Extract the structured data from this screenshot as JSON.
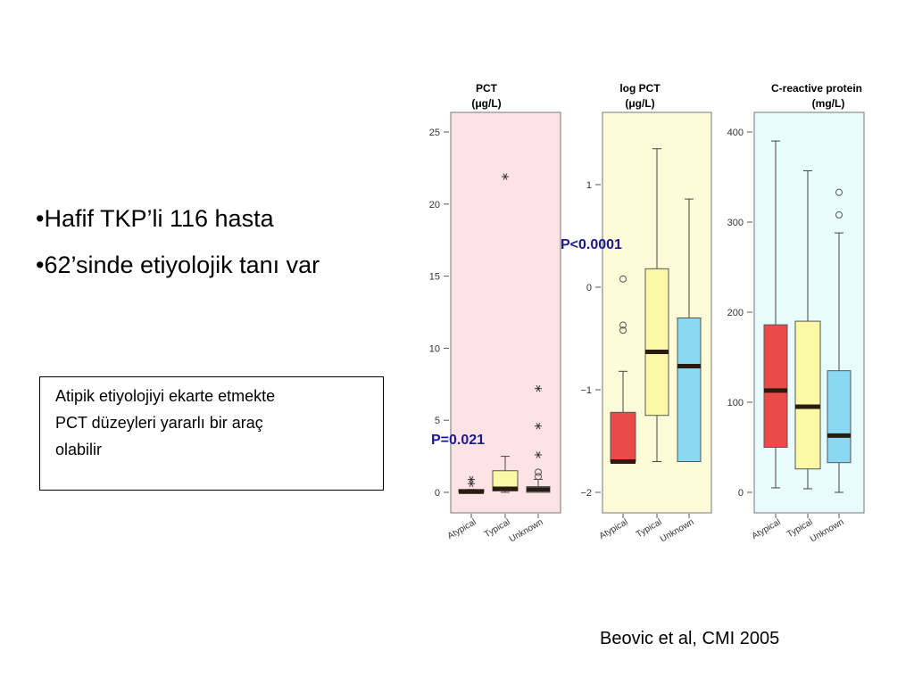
{
  "bullets": [
    "•Hafif TKP’li 116 hasta",
    "•62’sinde etiyolojik tanı var"
  ],
  "note": {
    "lines": [
      "Atipik etiyolojiyi ekarte etmekte",
      "PCT düzeyleri yararlı bir araç",
      "olabilir"
    ]
  },
  "pvalues": {
    "logpct": "P<0.0001",
    "pct": "P=0.021"
  },
  "citation": "Beovic et al, CMI 2005",
  "colors": {
    "atypical": "#e94b4b",
    "typical": "#fbf8a6",
    "unknown": "#8ad8f2",
    "median": "#2a1a10",
    "pct_bg": "#fde3e6",
    "logpct_bg": "#fefcd8",
    "crp_bg": "#e8fbfd"
  },
  "chart_data": [
    {
      "type": "box",
      "title": "PCT",
      "unit": "(μg/L)",
      "categories": [
        "Atypical",
        "Typical",
        "Unknown"
      ],
      "ylim": [
        -0.5,
        26
      ],
      "yticks": [
        0,
        5,
        10,
        15,
        20,
        25
      ],
      "ytick_labels": [
        "0",
        "5",
        "10",
        "15",
        "20",
        "25"
      ],
      "boxes": [
        {
          "name": "Atypical",
          "q1": 0.0,
          "median": 0.05,
          "q3": 0.2,
          "whisker_low": 0.0,
          "whisker_high": 0.2
        },
        {
          "name": "Typical",
          "q1": 0.1,
          "median": 0.25,
          "q3": 1.5,
          "whisker_low": 0.0,
          "whisker_high": 2.5
        },
        {
          "name": "Unknown",
          "q1": 0.0,
          "median": 0.2,
          "q3": 0.4,
          "whisker_low": 0.0,
          "whisker_high": 0.9
        }
      ],
      "outliers": [
        {
          "cat": 0,
          "value": 0.6,
          "marker": "star"
        },
        {
          "cat": 0,
          "value": 0.9,
          "marker": "star"
        },
        {
          "cat": 1,
          "value": 21.9,
          "marker": "star"
        },
        {
          "cat": 2,
          "value": 1.1,
          "marker": "circle"
        },
        {
          "cat": 2,
          "value": 1.4,
          "marker": "circle"
        },
        {
          "cat": 2,
          "value": 2.6,
          "marker": "star"
        },
        {
          "cat": 2,
          "value": 4.6,
          "marker": "star"
        },
        {
          "cat": 2,
          "value": 7.2,
          "marker": "star"
        }
      ]
    },
    {
      "type": "box",
      "title": "log PCT",
      "unit": "(μg/L)",
      "categories": [
        "Atypical",
        "Typical",
        "Unknown"
      ],
      "ylim": [
        -2.2,
        1.7
      ],
      "yticks": [
        -2,
        -1,
        0,
        1
      ],
      "ytick_labels": [
        "−2",
        "−1",
        "0",
        "1"
      ],
      "boxes": [
        {
          "name": "Atypical",
          "q1": -1.7,
          "median": -1.7,
          "q3": -1.22,
          "whisker_low": -1.7,
          "whisker_high": -0.82
        },
        {
          "name": "Typical",
          "q1": -1.25,
          "median": -0.63,
          "q3": 0.18,
          "whisker_low": -1.7,
          "whisker_high": 1.35
        },
        {
          "name": "Unknown",
          "q1": -1.7,
          "median": -0.77,
          "q3": -0.3,
          "whisker_low": -1.7,
          "whisker_high": 0.86
        }
      ],
      "outliers": [
        {
          "cat": 0,
          "value": 0.08,
          "marker": "circle"
        },
        {
          "cat": 0,
          "value": -0.37,
          "marker": "circle"
        },
        {
          "cat": 0,
          "value": -0.42,
          "marker": "circle"
        }
      ]
    },
    {
      "type": "box",
      "title": "C-reactive protein",
      "unit": "(mg/L)",
      "categories": [
        "Atypical",
        "Typical",
        "Unknown"
      ],
      "ylim": [
        -10,
        420
      ],
      "yticks": [
        0,
        100,
        200,
        300,
        400
      ],
      "ytick_labels": [
        "0",
        "100",
        "200",
        "300",
        "400"
      ],
      "boxes": [
        {
          "name": "Atypical",
          "q1": 50,
          "median": 113,
          "q3": 186,
          "whisker_low": 5,
          "whisker_high": 390
        },
        {
          "name": "Typical",
          "q1": 26,
          "median": 95,
          "q3": 190,
          "whisker_low": 4,
          "whisker_high": 357
        },
        {
          "name": "Unknown",
          "q1": 33,
          "median": 63,
          "q3": 135,
          "whisker_low": 0,
          "whisker_high": 288
        }
      ],
      "outliers": [
        {
          "cat": 2,
          "value": 333,
          "marker": "circle"
        },
        {
          "cat": 2,
          "value": 308,
          "marker": "circle"
        }
      ]
    }
  ]
}
